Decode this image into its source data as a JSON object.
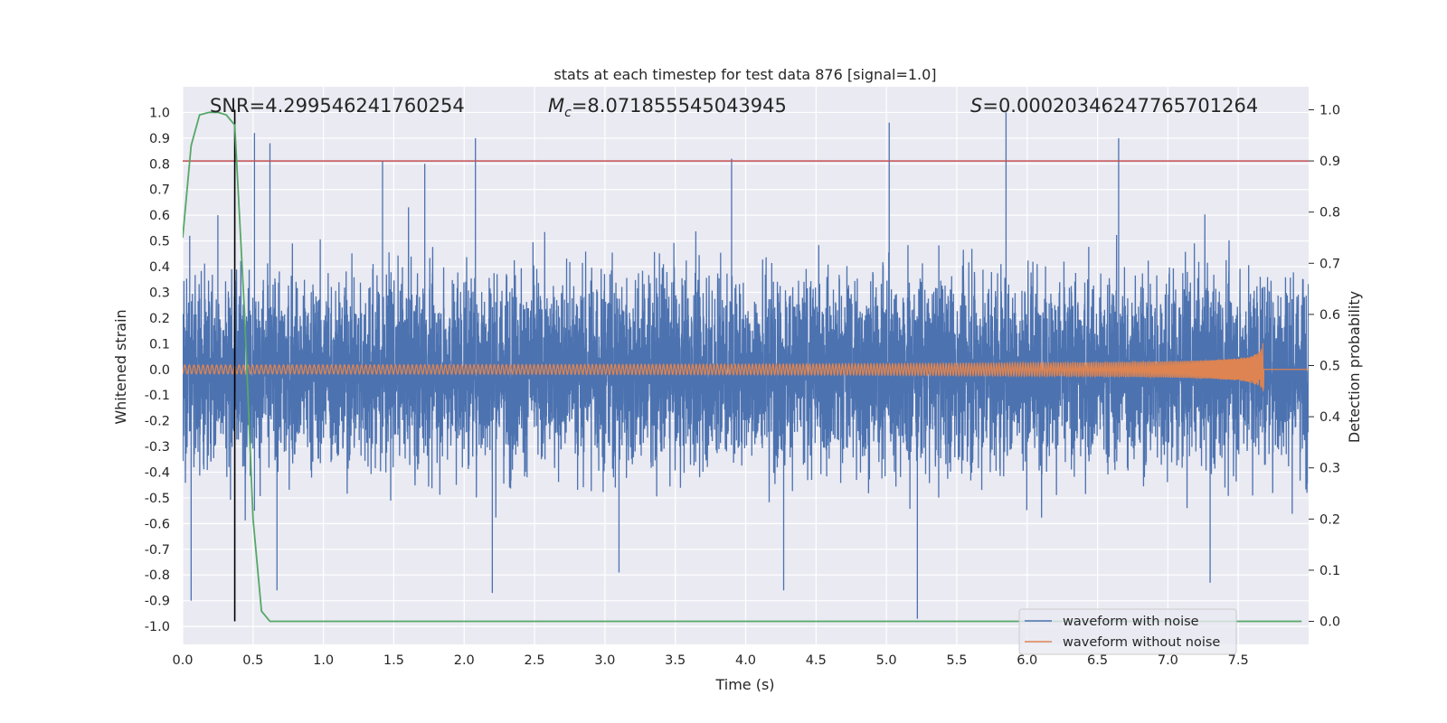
{
  "chart_data": {
    "type": "line",
    "title": "stats at each timestep for test data 876 [signal=1.0]",
    "xlabel": "Time (s)",
    "ylabel_left": "Whitened strain",
    "ylabel_right": "Detection probability",
    "xlim": [
      0.0,
      8.0
    ],
    "ylim_left": [
      -1.07,
      1.1
    ],
    "ylim_right": [
      -0.045,
      1.045
    ],
    "xticks": [
      "0.0",
      "0.5",
      "1.0",
      "1.5",
      "2.0",
      "2.5",
      "3.0",
      "3.5",
      "4.0",
      "4.5",
      "5.0",
      "5.5",
      "6.0",
      "6.5",
      "7.0",
      "7.5"
    ],
    "yticks_left": [
      "1.0",
      "0.9",
      "0.8",
      "0.7",
      "0.6",
      "0.5",
      "0.4",
      "0.3",
      "0.2",
      "0.1",
      "0.0",
      "-0.1",
      "-0.2",
      "-0.3",
      "-0.4",
      "-0.5",
      "-0.6",
      "-0.7",
      "-0.8",
      "-0.9",
      "-1.0"
    ],
    "yticks_right": [
      "1.0",
      "0.9",
      "0.8",
      "0.7",
      "0.6",
      "0.5",
      "0.4",
      "0.3",
      "0.2",
      "0.1",
      "0.0"
    ],
    "grid": true,
    "legend_position": "lower-right",
    "annotations": {
      "snr": "SNR=4.299546241760254",
      "mc_symbol": "M",
      "mc_sub": "c",
      "mc_value": "=8.071855545043945",
      "s_symbol": "S",
      "s_value": "=0.00020346247765701264"
    },
    "threshold": {
      "axis": "right",
      "value": 0.9,
      "color": "#c44e52"
    },
    "vline": {
      "x": 0.37,
      "color": "#000000"
    },
    "series": [
      {
        "name": "waveform with noise",
        "color": "#4c72b0",
        "axis": "left",
        "band_std": 0.2,
        "notable_peaks": [
          {
            "x": 0.05,
            "y": 0.52
          },
          {
            "x": 0.06,
            "y": -0.77
          },
          {
            "x": 0.06,
            "y": -0.9
          },
          {
            "x": 0.25,
            "y": 0.6
          },
          {
            "x": 0.51,
            "y": 0.92
          },
          {
            "x": 0.51,
            "y": -0.55
          },
          {
            "x": 0.62,
            "y": 0.88
          },
          {
            "x": 0.67,
            "y": -0.86
          },
          {
            "x": 1.42,
            "y": 0.81
          },
          {
            "x": 1.72,
            "y": 0.8
          },
          {
            "x": 2.08,
            "y": 0.9
          },
          {
            "x": 2.2,
            "y": -0.87
          },
          {
            "x": 3.1,
            "y": -0.79
          },
          {
            "x": 3.9,
            "y": 0.82
          },
          {
            "x": 4.27,
            "y": -0.86
          },
          {
            "x": 5.02,
            "y": 0.96
          },
          {
            "x": 5.22,
            "y": -0.97
          },
          {
            "x": 5.85,
            "y": 1.0
          },
          {
            "x": 6.65,
            "y": 0.9
          },
          {
            "x": 7.3,
            "y": -0.83
          }
        ]
      },
      {
        "name": "waveform without noise",
        "color": "#dd8452",
        "axis": "left",
        "merger_time": 7.68,
        "peak_amplitude": 0.12
      },
      {
        "name": "",
        "color": "#55a868",
        "axis": "right",
        "x": [
          0.0,
          0.06,
          0.12,
          0.19,
          0.25,
          0.31,
          0.37,
          0.44,
          0.5,
          0.56,
          0.62,
          0.7,
          1.0,
          2.0,
          3.0,
          4.0,
          5.0,
          6.0,
          7.0,
          7.95
        ],
        "y": [
          0.75,
          0.93,
          0.99,
          0.995,
          0.995,
          0.99,
          0.97,
          0.6,
          0.2,
          0.02,
          0.0,
          0.0,
          0.0,
          0.0,
          0.0,
          0.0,
          0.0,
          0.0,
          0.0,
          0.0
        ]
      }
    ]
  }
}
